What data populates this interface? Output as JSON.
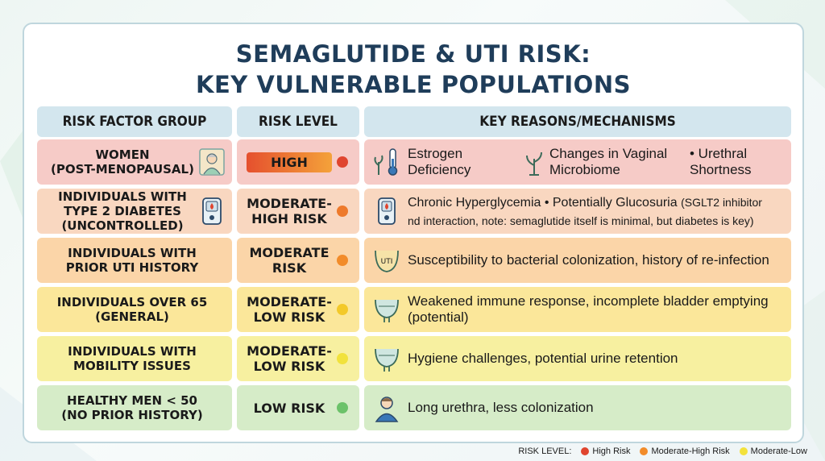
{
  "title_line1": "SEMAGLUTIDE & UTI RISK:",
  "title_line2": "KEY VULNERABLE POPULATIONS",
  "headers": {
    "group": "RISK FACTOR GROUP",
    "level": "RISK LEVEL",
    "reasons": "KEY REASONS/MECHANISMS"
  },
  "rows": [
    {
      "group": "WOMEN\n(POST-MENOPAUSAL)",
      "level": "HIGH",
      "reason_parts": [
        "Estrogen\nDeficiency",
        "Changes in Vaginal\nMicrobiome",
        "• Urethral\nShortness"
      ],
      "color": "#f6cbc7",
      "dot": "#e0452f",
      "icon": "woman-icon"
    },
    {
      "group": "INDIVIDUALS WITH\nTYPE 2 DIABETES\n(UNCONTROLLED)",
      "level": "MODERATE-\nHIGH RISK",
      "reason_main": "Chronic Hyperglycemia  • Potentially Glucosuria",
      "reason_small": "(SGLT2 inhibitor",
      "reason_line2": "nd interaction, note: semaglutide itself is minimal, but diabetes is key)",
      "color": "#f9d7c0",
      "dot": "#ee7a2b",
      "icon": "glucose-meter-icon"
    },
    {
      "group": "INDIVIDUALS WITH\nPRIOR UTI HISTORY",
      "level": "MODERATE\nRISK",
      "reason": "Susceptibility to bacterial colonization, history of re-infection",
      "color": "#fbd5a8",
      "dot": "#f28c2a",
      "icon": "uti-bladder-icon"
    },
    {
      "group": "INDIVIDUALS OVER 65\n(GENERAL)",
      "level": "MODERATE-\nLOW RISK",
      "reason": "Weakened immune response, incomplete bladder emptying\n(potential)",
      "color": "#fbe79a",
      "dot": "#f3c92a",
      "icon": "bladder-icon"
    },
    {
      "group": "INDIVIDUALS WITH\nMOBILITY ISSUES",
      "level": "MODERATE-\nLOW RISK",
      "reason": "Hygiene challenges, potential urine retention",
      "color": "#f7f0a0",
      "dot": "#f1e23c",
      "icon": "bladder-icon"
    },
    {
      "group": "HEALTHY MEN < 50\n(NO PRIOR HISTORY)",
      "level": "LOW RISK",
      "reason": "Long urethra, less colonization",
      "color": "#d6ecc8",
      "dot": "#6cc26a",
      "icon": "man-icon"
    }
  ],
  "legend": {
    "label": "RISK LEVEL:",
    "items": [
      {
        "label": "High Risk",
        "color": "#e0452f"
      },
      {
        "label": "Moderate-High Risk",
        "color": "#f28c2a"
      },
      {
        "label": "Moderate-Low",
        "color": "#f3e23c"
      }
    ]
  }
}
